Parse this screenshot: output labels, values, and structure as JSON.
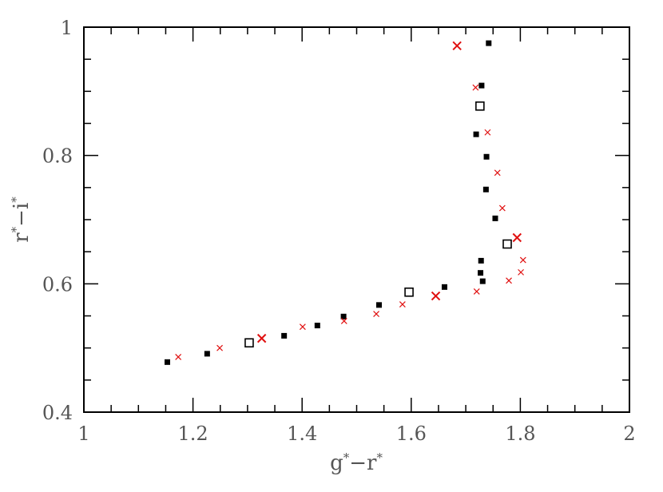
{
  "chart_data": {
    "type": "scatter",
    "title": "",
    "xlabel": "g*−r*",
    "ylabel": "r*−i*",
    "xlim": [
      1,
      2
    ],
    "ylim": [
      0.4,
      1
    ],
    "x_ticks": [
      "1",
      "1.2",
      "1.4",
      "1.6",
      "1.8",
      "2"
    ],
    "y_ticks": [
      "0.4",
      "0.6",
      "0.8",
      "1"
    ],
    "grid": false,
    "colors": {
      "black": "#000000",
      "red": "#e01010",
      "axis": "#000000",
      "text": "#555555"
    },
    "series": [
      {
        "marker": "filled-square",
        "color": "#000000",
        "points": [
          {
            "x": 1.153,
            "y": 0.478
          },
          {
            "x": 1.226,
            "y": 0.491
          },
          {
            "x": 1.367,
            "y": 0.519
          },
          {
            "x": 1.428,
            "y": 0.535
          },
          {
            "x": 1.476,
            "y": 0.549
          },
          {
            "x": 1.541,
            "y": 0.567
          },
          {
            "x": 1.661,
            "y": 0.595
          },
          {
            "x": 1.731,
            "y": 0.604
          },
          {
            "x": 1.727,
            "y": 0.617
          },
          {
            "x": 1.728,
            "y": 0.636
          },
          {
            "x": 1.754,
            "y": 0.702
          },
          {
            "x": 1.737,
            "y": 0.747
          },
          {
            "x": 1.738,
            "y": 0.798
          },
          {
            "x": 1.719,
            "y": 0.833
          },
          {
            "x": 1.729,
            "y": 0.909
          },
          {
            "x": 1.742,
            "y": 0.975
          }
        ]
      },
      {
        "marker": "open-square",
        "color": "#000000",
        "points": [
          {
            "x": 1.303,
            "y": 0.508
          },
          {
            "x": 1.596,
            "y": 0.587
          },
          {
            "x": 1.776,
            "y": 0.662
          },
          {
            "x": 1.726,
            "y": 0.877
          }
        ]
      },
      {
        "marker": "small-cross",
        "color": "#e01010",
        "points": [
          {
            "x": 1.173,
            "y": 0.486
          },
          {
            "x": 1.249,
            "y": 0.5
          },
          {
            "x": 1.401,
            "y": 0.533
          },
          {
            "x": 1.477,
            "y": 0.542
          },
          {
            "x": 1.536,
            "y": 0.553
          },
          {
            "x": 1.584,
            "y": 0.568
          },
          {
            "x": 1.72,
            "y": 0.588
          },
          {
            "x": 1.779,
            "y": 0.605
          },
          {
            "x": 1.801,
            "y": 0.618
          },
          {
            "x": 1.805,
            "y": 0.637
          },
          {
            "x": 1.767,
            "y": 0.718
          },
          {
            "x": 1.758,
            "y": 0.773
          },
          {
            "x": 1.74,
            "y": 0.836
          },
          {
            "x": 1.718,
            "y": 0.906
          }
        ]
      },
      {
        "marker": "large-cross",
        "color": "#e01010",
        "points": [
          {
            "x": 1.326,
            "y": 0.515
          },
          {
            "x": 1.645,
            "y": 0.581
          },
          {
            "x": 1.794,
            "y": 0.672
          },
          {
            "x": 1.684,
            "y": 0.971
          }
        ]
      }
    ]
  }
}
